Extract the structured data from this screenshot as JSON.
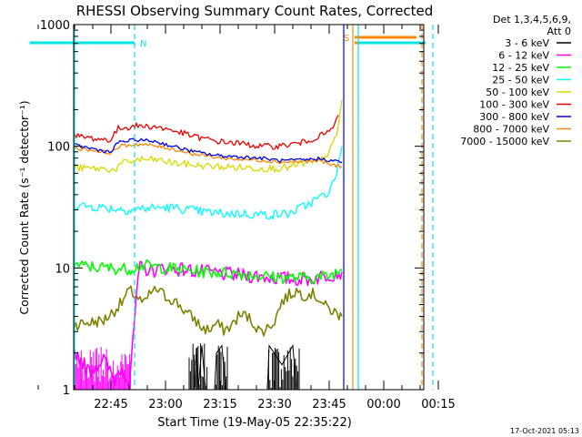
{
  "chart_data": {
    "type": "line",
    "title": "RHESSI Observing Summary Count Rates, Corrected",
    "xlabel": "Start Time (19-May-05 22:35:22)",
    "ylabel": "Corrected Count Rate (s⁻¹ detector⁻¹)",
    "yscale": "log",
    "ylim": [
      1,
      1000
    ],
    "y_ticks": [
      "1",
      "10",
      "100",
      "1000"
    ],
    "xlim_minutes": [
      22.63,
      80.0
    ],
    "x_ticks": [
      {
        "m": 45,
        "label": "22:45"
      },
      {
        "m": 60,
        "label": "23:00"
      },
      {
        "m": 75,
        "label": "23:15"
      },
      {
        "m": 90,
        "label": "23:30"
      },
      {
        "m": 105,
        "label": "23:45"
      },
      {
        "m": 120,
        "label": "00:00"
      },
      {
        "m": 135,
        "label": "00:15"
      }
    ],
    "legend": {
      "placement": "right",
      "title_lines": [
        "Det 1,3,4,5,6,9,",
        "Att 0"
      ],
      "entries": [
        {
          "label": "3 - 6 keV",
          "color": "#000000"
        },
        {
          "label": "6 - 12 keV",
          "color": "#ff00ff"
        },
        {
          "label": "12 - 25 keV",
          "color": "#00ff00"
        },
        {
          "label": "25 - 50 keV",
          "color": "#00ffff"
        },
        {
          "label": "50 - 100 keV",
          "color": "#d9d900"
        },
        {
          "label": "100 - 300 keV",
          "color": "#ee0000"
        },
        {
          "label": "300 - 800 keV",
          "color": "#0000ee"
        },
        {
          "label": "800 - 7000 keV",
          "color": "#ff8800"
        },
        {
          "label": "7000 - 15000 keV",
          "color": "#808000"
        }
      ]
    },
    "series": [
      {
        "name": "3 - 6 keV",
        "color": "#000000",
        "points": [
          [
            68,
            1.05
          ],
          [
            68.5,
            2.2
          ],
          [
            69,
            1
          ],
          [
            70,
            2.3
          ],
          [
            71,
            1
          ],
          [
            73.5,
            1
          ],
          [
            74,
            2
          ],
          [
            75.5,
            2.3
          ],
          [
            76.5,
            1
          ],
          [
            88,
            1
          ],
          [
            88.5,
            2.3
          ],
          [
            92,
            1.6
          ],
          [
            95,
            2.3
          ],
          [
            96,
            1
          ],
          [
            101,
            1
          ]
        ]
      },
      {
        "name": "6 - 12 keV",
        "color": "#ff00ff",
        "points": [
          [
            22.63,
            2.2
          ],
          [
            25,
            1.3
          ],
          [
            28,
            2.2
          ],
          [
            31,
            1.6
          ],
          [
            35,
            2.1
          ],
          [
            39,
            1.4
          ],
          [
            43,
            1.8
          ],
          [
            46,
            1.2
          ],
          [
            48,
            1.6
          ],
          [
            50,
            1.1
          ],
          [
            51,
            2.3
          ],
          [
            52,
            6
          ],
          [
            53,
            10
          ],
          [
            56,
            9.5
          ],
          [
            60,
            10
          ],
          [
            65,
            9.7
          ],
          [
            70,
            9.3
          ],
          [
            75,
            9
          ],
          [
            80,
            8.7
          ],
          [
            85,
            8.6
          ],
          [
            90,
            8.3
          ],
          [
            95,
            8.1
          ],
          [
            100,
            8.1
          ],
          [
            105,
            8.8
          ],
          [
            108.5,
            9.3
          ]
        ]
      },
      {
        "name": "12 - 25 keV",
        "color": "#00ff00",
        "points": [
          [
            22.63,
            11.5
          ],
          [
            27,
            10.5
          ],
          [
            32,
            11
          ],
          [
            38,
            10.3
          ],
          [
            44,
            10
          ],
          [
            50,
            9.8
          ],
          [
            53,
            10.5
          ],
          [
            58,
            10.2
          ],
          [
            64,
            9.7
          ],
          [
            70,
            9.3
          ],
          [
            75,
            9.2
          ],
          [
            80,
            9
          ],
          [
            85,
            8.7
          ],
          [
            90,
            8.4
          ],
          [
            95,
            8.3
          ],
          [
            100,
            8.3
          ],
          [
            105,
            8.6
          ],
          [
            108.5,
            9.7
          ]
        ]
      },
      {
        "name": "25 - 50 keV",
        "color": "#00ffff",
        "points": [
          [
            22.63,
            35
          ],
          [
            28,
            34
          ],
          [
            34,
            33
          ],
          [
            40,
            32
          ],
          [
            45,
            31
          ],
          [
            50,
            30
          ],
          [
            55,
            31
          ],
          [
            60,
            31.5
          ],
          [
            65,
            30.5
          ],
          [
            70,
            29
          ],
          [
            75,
            28
          ],
          [
            80,
            28
          ],
          [
            85,
            27.5
          ],
          [
            90,
            27.5
          ],
          [
            94,
            28
          ],
          [
            98,
            32
          ],
          [
            101,
            36
          ],
          [
            104,
            40
          ],
          [
            106,
            48
          ],
          [
            107.5,
            70
          ],
          [
            108.5,
            100
          ]
        ]
      },
      {
        "name": "50 - 100 keV",
        "color": "#d9d900",
        "points": [
          [
            22.63,
            69
          ],
          [
            30,
            67
          ],
          [
            38,
            66
          ],
          [
            44,
            65
          ],
          [
            46,
            64
          ],
          [
            48,
            72
          ],
          [
            53,
            78
          ],
          [
            58,
            77
          ],
          [
            62,
            73
          ],
          [
            68,
            70
          ],
          [
            74,
            68
          ],
          [
            80,
            67
          ],
          [
            86,
            66
          ],
          [
            90,
            66
          ],
          [
            94,
            67
          ],
          [
            97,
            71
          ],
          [
            100,
            73
          ],
          [
            103,
            78
          ],
          [
            105,
            90
          ],
          [
            107,
            120
          ],
          [
            108.5,
            240
          ]
        ]
      },
      {
        "name": "100 - 300 keV",
        "color": "#ee0000",
        "points": [
          [
            22.63,
            138
          ],
          [
            28,
            130
          ],
          [
            35,
            122
          ],
          [
            42,
            114
          ],
          [
            45,
            113
          ],
          [
            47,
            140
          ],
          [
            52,
            147
          ],
          [
            57,
            145
          ],
          [
            62,
            135
          ],
          [
            68,
            120
          ],
          [
            74,
            110
          ],
          [
            80,
            106
          ],
          [
            86,
            100
          ],
          [
            90,
            100
          ],
          [
            94,
            103
          ],
          [
            98,
            108
          ],
          [
            102,
            120
          ],
          [
            104,
            127
          ],
          [
            106,
            140
          ],
          [
            107.5,
            180
          ]
        ]
      },
      {
        "name": "300 - 800 keV",
        "color": "#0000ee",
        "points": [
          [
            22.63,
            120
          ],
          [
            28,
            110
          ],
          [
            35,
            102
          ],
          [
            42,
            93
          ],
          [
            45,
            89
          ],
          [
            47,
            108
          ],
          [
            52,
            113
          ],
          [
            57,
            110
          ],
          [
            62,
            100
          ],
          [
            68,
            90
          ],
          [
            74,
            84
          ],
          [
            80,
            82
          ],
          [
            86,
            80
          ],
          [
            92,
            76
          ],
          [
            98,
            77
          ],
          [
            102,
            79
          ],
          [
            104,
            78
          ],
          [
            106,
            76
          ],
          [
            108.5,
            74
          ]
        ]
      },
      {
        "name": "800 - 7000 keV",
        "color": "#ff8800",
        "points": [
          [
            22.63,
            112
          ],
          [
            28,
            103
          ],
          [
            35,
            97
          ],
          [
            42,
            91
          ],
          [
            45,
            88
          ],
          [
            47,
            99
          ],
          [
            52,
            104
          ],
          [
            57,
            101
          ],
          [
            62,
            95
          ],
          [
            68,
            86
          ],
          [
            74,
            81
          ],
          [
            80,
            78
          ],
          [
            86,
            77
          ],
          [
            92,
            74
          ],
          [
            98,
            75
          ],
          [
            102,
            76
          ],
          [
            104,
            73
          ],
          [
            106,
            70
          ],
          [
            108.5,
            68
          ]
        ]
      },
      {
        "name": "7000 - 15000 keV",
        "color": "#808000",
        "points": [
          [
            22.63,
            3.4
          ],
          [
            34,
            3.4
          ],
          [
            43,
            3.7
          ],
          [
            46,
            4.5
          ],
          [
            48,
            5.2
          ],
          [
            50,
            6.5
          ],
          [
            52,
            5.9
          ],
          [
            54,
            5
          ],
          [
            56,
            6.3
          ],
          [
            58,
            6.6
          ],
          [
            60,
            5.8
          ],
          [
            62,
            5.5
          ],
          [
            64,
            4.9
          ],
          [
            66,
            4.2
          ],
          [
            68,
            3.8
          ],
          [
            70,
            3.2
          ],
          [
            72,
            3.1
          ],
          [
            74,
            3.5
          ],
          [
            76,
            3.1
          ],
          [
            78,
            3.3
          ],
          [
            80,
            4
          ],
          [
            82,
            4.1
          ],
          [
            84,
            3.6
          ],
          [
            86,
            3
          ],
          [
            88,
            3.2
          ],
          [
            90,
            3.7
          ],
          [
            92,
            5.3
          ],
          [
            94,
            6
          ],
          [
            96,
            6.5
          ],
          [
            98,
            6
          ],
          [
            100,
            6.2
          ],
          [
            102,
            5.7
          ],
          [
            104,
            4.8
          ],
          [
            106,
            4.4
          ],
          [
            108.5,
            4
          ]
        ]
      }
    ],
    "annotation_lines": [
      {
        "kind": "N",
        "label": "N",
        "color": "#00e5e5",
        "style": "dashed",
        "m": 51.5,
        "bar_from_m": 22.63,
        "bar_to_m": 51.5
      },
      {
        "kind": "S",
        "label": "S",
        "color": "#ff8800",
        "style": "solid",
        "m": 111.5,
        "bar_from_m": 112,
        "bar_to_m": 129
      },
      {
        "kind": "S-end",
        "label": "",
        "color": "#ff8800",
        "style": "dashed",
        "m": 130.5
      },
      {
        "kind": "end",
        "label": "",
        "color": "#0000ee",
        "style": "solid",
        "m": 109
      },
      {
        "kind": "cyan-solid",
        "label": "",
        "color": "#00e5e5",
        "style": "solid",
        "m": 113
      },
      {
        "kind": "cyan-dashed",
        "label": "",
        "color": "#00e5e5",
        "style": "dashed",
        "m": 133.5
      }
    ],
    "grid": false
  },
  "footer_date": "17-Oct-2021 05:13"
}
